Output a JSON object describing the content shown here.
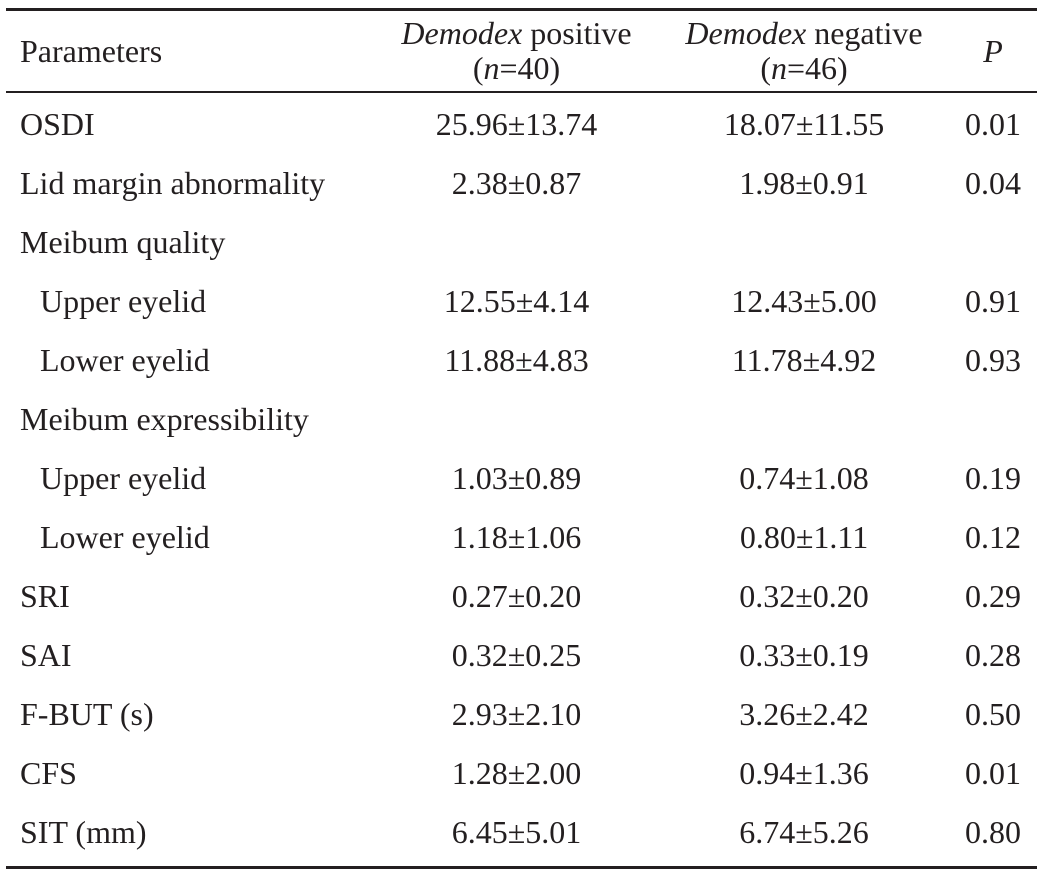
{
  "table": {
    "header": {
      "parameters": "Parameters",
      "pos_italic": "Demodex",
      "pos_rest": " positive",
      "pos_n_open": "(",
      "pos_n_var": "n",
      "pos_n_rest": "=40)",
      "neg_italic": "Demodex",
      "neg_rest": " negative",
      "neg_n_open": "(",
      "neg_n_var": "n",
      "neg_n_rest": "=46)",
      "p": "P"
    },
    "rows": [
      {
        "param": "OSDI",
        "pos": "25.96±13.74",
        "neg": "18.07±11.55",
        "p": "0.01",
        "sub": false
      },
      {
        "param": "Lid margin abnormality",
        "pos": "2.38±0.87",
        "neg": "1.98±0.91",
        "p": "0.04",
        "sub": false
      },
      {
        "param": "Meibum quality",
        "pos": "",
        "neg": "",
        "p": "",
        "sub": false
      },
      {
        "param": "Upper eyelid",
        "pos": "12.55±4.14",
        "neg": "12.43±5.00",
        "p": "0.91",
        "sub": true
      },
      {
        "param": "Lower eyelid",
        "pos": "11.88±4.83",
        "neg": "11.78±4.92",
        "p": "0.93",
        "sub": true
      },
      {
        "param": "Meibum expressibility",
        "pos": "",
        "neg": "",
        "p": "",
        "sub": false
      },
      {
        "param": "Upper eyelid",
        "pos": "1.03±0.89",
        "neg": "0.74±1.08",
        "p": "0.19",
        "sub": true
      },
      {
        "param": "Lower eyelid",
        "pos": "1.18±1.06",
        "neg": "0.80±1.11",
        "p": "0.12",
        "sub": true
      },
      {
        "param": "SRI",
        "pos": "0.27±0.20",
        "neg": "0.32±0.20",
        "p": "0.29",
        "sub": false
      },
      {
        "param": "SAI",
        "pos": "0.32±0.25",
        "neg": "0.33±0.19",
        "p": "0.28",
        "sub": false
      },
      {
        "param": "F-BUT (s)",
        "pos": "2.93±2.10",
        "neg": "3.26±2.42",
        "p": "0.50",
        "sub": false
      },
      {
        "param": "CFS",
        "pos": "1.28±2.00",
        "neg": "0.94±1.36",
        "p": "0.01",
        "sub": false
      },
      {
        "param": "SIT (mm)",
        "pos": "6.45±5.01",
        "neg": "6.74±5.26",
        "p": "0.80",
        "sub": false
      }
    ]
  }
}
